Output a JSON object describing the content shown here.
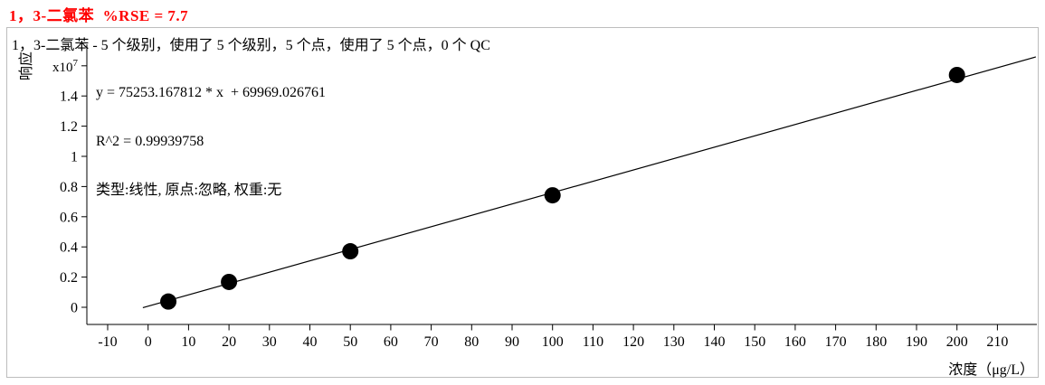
{
  "header": {
    "title": "1，3-二氯苯  %RSE = 7.7"
  },
  "subtitle": "1，3-二氯苯 - 5 个级别，使用了 5 个级别，5 个点，使用了 5 个点，0 个 QC",
  "stats": {
    "equation": "y = 75253.167812 * x  + 69969.026761",
    "r_squared": "R^2 = 0.99939758",
    "model": "类型:线性, 原点:忽略, 权重:无"
  },
  "axes": {
    "y_label": "响应",
    "y_multiplier_base": "x10",
    "y_multiplier_exp": "7",
    "x_label": "浓度（μg/L）"
  },
  "colors": {
    "title_red": "#ff0000",
    "axis_black": "#000000",
    "box_border_gray": "#bdbdbd"
  },
  "chart_data": {
    "type": "scatter",
    "title": "1，3-二氯苯  %RSE = 7.7",
    "xlabel": "浓度（μg/L）",
    "ylabel": "响应",
    "y_unit_multiplier": 10000000,
    "points_x": [
      5,
      20,
      50,
      100,
      200
    ],
    "points_y_e7": [
      0.038,
      0.168,
      0.371,
      0.742,
      1.539
    ],
    "fit": {
      "type": "线性",
      "slope": 75253.167812,
      "intercept": 69969.026761,
      "r2": 0.99939758,
      "origin": "忽略",
      "weight": "无",
      "rse_percent": 7.7,
      "levels": 5,
      "levels_used": 5,
      "points": 5,
      "points_used": 5,
      "qc_count": 0
    },
    "fit_line_x_range": [
      -1.3,
      219.5
    ],
    "x_ticks": [
      -10,
      0,
      10,
      20,
      30,
      40,
      50,
      60,
      70,
      80,
      90,
      100,
      110,
      120,
      130,
      140,
      150,
      160,
      170,
      180,
      190,
      200,
      210
    ],
    "y_ticks_e7": [
      0,
      0.2,
      0.4,
      0.6,
      0.8,
      1,
      1.2,
      1.4
    ],
    "y_multiplier_tick_e7": 1.6,
    "xlim": [
      -15,
      220
    ],
    "ylim_e7": [
      -0.19,
      1.74
    ],
    "grid": false,
    "legend": false
  }
}
